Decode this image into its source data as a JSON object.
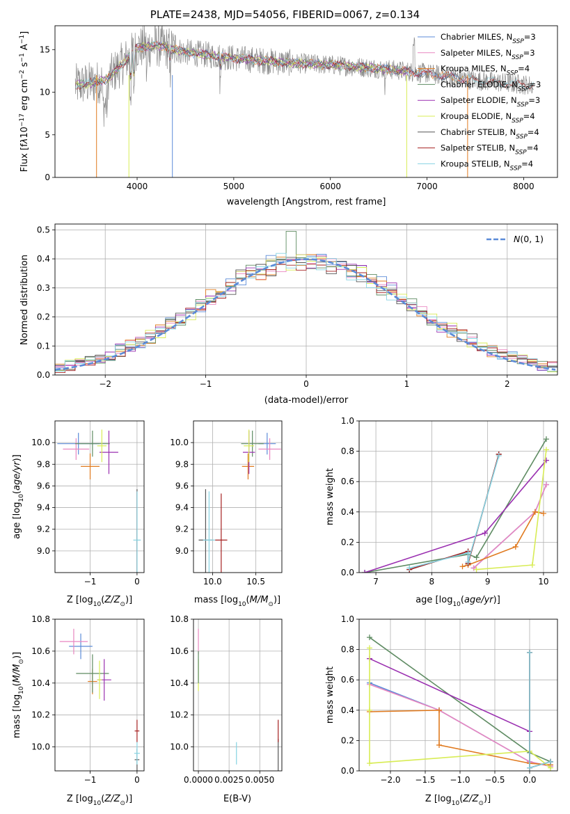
{
  "title": "PLATE=2438, MJD=54056, FIBERID=0067, z=0.134",
  "colors": {
    "chab_miles": "#5b8bd8",
    "salp_miles": "#e986c0",
    "krou_miles": "#e07a1f",
    "chab_elodie": "#5e8b62",
    "salp_elodie": "#9a2fb0",
    "krou_elodie": "#d8ec55",
    "chab_stelib": "#555555",
    "salp_stelib": "#a52020",
    "krou_stelib": "#86d3e2",
    "data_gray": "#8a8a8a",
    "normal_curve": "#5b8bd8"
  },
  "chart_data": [
    {
      "id": "spectrum",
      "type": "line",
      "xlabel": "wavelength [Angstrom, rest frame]",
      "ylabel": "Flux [f",
      "xlim": [
        3150,
        8350
      ],
      "ylim": [
        0,
        17.8
      ],
      "xticks": [
        4000,
        5000,
        6000,
        7000,
        8000
      ],
      "yticks": [
        0,
        5,
        10,
        15
      ],
      "legend_position": "upper right",
      "series": [
        {
          "key": "chab_miles",
          "label_main": "Chabrier MILES, N",
          "label_sub": "SSP",
          "label_end": "=3"
        },
        {
          "key": "salp_miles",
          "label_main": "Salpeter MILES, N",
          "label_sub": "SSP",
          "label_end": "=3"
        },
        {
          "key": "krou_miles",
          "label_main": "Kroupa MILES, N",
          "label_sub": "SSP",
          "label_end": "=4"
        },
        {
          "key": "chab_elodie",
          "label_main": "Chabrier ELODIE, N",
          "label_sub": "SSP",
          "label_end": "=3"
        },
        {
          "key": "salp_elodie",
          "label_main": "Salpeter ELODIE, N",
          "label_sub": "SSP",
          "label_end": "=3"
        },
        {
          "key": "krou_elodie",
          "label_main": "Kroupa ELODIE, N",
          "label_sub": "SSP",
          "label_end": "=4"
        },
        {
          "key": "chab_stelib",
          "label_main": "Chabrier STELIB, N",
          "label_sub": "SSP",
          "label_end": "=4"
        },
        {
          "key": "salp_stelib",
          "label_main": "Salpeter STELIB, N",
          "label_sub": "SSP",
          "label_end": "=4"
        },
        {
          "key": "krou_stelib",
          "label_main": "Kroupa STELIB, N",
          "label_sub": "SSP",
          "label_end": "=4"
        }
      ],
      "continuum": [
        [
          3360,
          10.8
        ],
        [
          3600,
          11.2
        ],
        [
          3700,
          11.6
        ],
        [
          3900,
          14.0
        ],
        [
          4000,
          15.2
        ],
        [
          4200,
          15.5
        ],
        [
          4500,
          14.7
        ],
        [
          5000,
          14.0
        ],
        [
          5500,
          13.5
        ],
        [
          6000,
          13.2
        ],
        [
          6500,
          12.8
        ],
        [
          7000,
          12.2
        ],
        [
          7500,
          11.4
        ],
        [
          8000,
          10.9
        ],
        [
          8100,
          10.8
        ]
      ],
      "model_dropouts": [
        {
          "key": "krou_miles",
          "x": 3580,
          "ymin": 0
        },
        {
          "key": "krou_elodie",
          "x": 3915,
          "ymin": 0
        },
        {
          "key": "chab_miles",
          "x": 4365,
          "ymin": 0
        },
        {
          "key": "krou_elodie",
          "x": 6790,
          "ymin": 0
        },
        {
          "key": "krou_miles",
          "x": 7420,
          "ymin": 0
        }
      ]
    },
    {
      "id": "residual-histogram",
      "type": "histogram",
      "xlabel": "(data-model)/error",
      "ylabel": "Normed distribution",
      "xlim": [
        -2.5,
        2.5
      ],
      "ylim": [
        0,
        0.52
      ],
      "xticks": [
        -2,
        -1,
        0,
        1,
        2
      ],
      "yticks": [
        0,
        0.1,
        0.2,
        0.3,
        0.4,
        0.5
      ],
      "grid": true,
      "legend_position": "upper right",
      "legend_label": "N(0,1)",
      "bin_width": 0.1,
      "peak_bin": {
        "series": "chab_elodie",
        "x": -0.2,
        "value": 0.495
      }
    },
    {
      "id": "age-vs-Z",
      "type": "scatter",
      "xlabel": "Z [log",
      "ylabel": "age  [log",
      "xlim": [
        -1.75,
        0.15
      ],
      "ylim": [
        8.8,
        10.2
      ],
      "xticks": [
        -1,
        0
      ],
      "yticks": [
        9.0,
        9.2,
        9.4,
        9.6,
        9.8,
        10.0
      ],
      "grid": true,
      "points": [
        {
          "key": "chab_miles",
          "x": -1.25,
          "y": 9.99,
          "xerr": 0.45,
          "yerr": 0.1
        },
        {
          "key": "salp_miles",
          "x": -1.3,
          "y": 9.94,
          "xerr": 0.28,
          "yerr": 0.1
        },
        {
          "key": "krou_miles",
          "x": -1.0,
          "y": 9.78,
          "xerr": 0.2,
          "yerr": 0.12
        },
        {
          "key": "chab_elodie",
          "x": -0.95,
          "y": 9.99,
          "xerr": 0.37,
          "yerr": 0.12
        },
        {
          "key": "salp_elodie",
          "x": -0.6,
          "y": 9.91,
          "xerr": 0.2,
          "yerr": 0.2
        },
        {
          "key": "krou_elodie",
          "x": -0.75,
          "y": 9.97,
          "xerr": 0.1,
          "yerr": 0.15
        },
        {
          "key": "chab_stelib",
          "x": 0.0,
          "y": 9.1,
          "xerr": 0.01,
          "yerr": 0.47
        },
        {
          "key": "salp_stelib",
          "x": 0.0,
          "y": 9.1,
          "xerr": 0.01,
          "yerr": 0.45
        },
        {
          "key": "krou_stelib",
          "x": 0.0,
          "y": 9.1,
          "xerr": 0.08,
          "yerr": 0.45
        }
      ]
    },
    {
      "id": "age-vs-mass",
      "type": "scatter",
      "xlabel": "mass [log",
      "ylabel": "",
      "xlim": [
        9.78,
        10.8
      ],
      "ylim": [
        8.8,
        10.2
      ],
      "xticks": [
        10.0,
        10.5
      ],
      "yticks": [
        9.0,
        9.2,
        9.4,
        9.6,
        9.8,
        10.0
      ],
      "grid": true,
      "points": [
        {
          "key": "chab_miles",
          "x": 10.63,
          "y": 9.99,
          "xerr": 0.1,
          "yerr": 0.1
        },
        {
          "key": "salp_miles",
          "x": 10.66,
          "y": 9.94,
          "xerr": 0.13,
          "yerr": 0.1
        },
        {
          "key": "krou_miles",
          "x": 10.41,
          "y": 9.78,
          "xerr": 0.07,
          "yerr": 0.12
        },
        {
          "key": "chab_elodie",
          "x": 10.46,
          "y": 9.99,
          "xerr": 0.13,
          "yerr": 0.12
        },
        {
          "key": "salp_elodie",
          "x": 10.42,
          "y": 9.91,
          "xerr": 0.07,
          "yerr": 0.2
        },
        {
          "key": "krou_elodie",
          "x": 10.42,
          "y": 9.97,
          "xerr": 0.06,
          "yerr": 0.15
        },
        {
          "key": "chab_stelib",
          "x": 9.92,
          "y": 9.1,
          "xerr": 0.08,
          "yerr": 0.47
        },
        {
          "key": "salp_stelib",
          "x": 10.1,
          "y": 9.1,
          "xerr": 0.07,
          "yerr": 0.43
        },
        {
          "key": "krou_stelib",
          "x": 9.96,
          "y": 9.1,
          "xerr": 0.07,
          "yerr": 0.45
        }
      ]
    },
    {
      "id": "massweight-vs-age",
      "type": "line",
      "xlabel": "age  [log",
      "ylabel": "mass weight",
      "xlim": [
        6.7,
        10.25
      ],
      "ylim": [
        0,
        1.0
      ],
      "xticks": [
        7,
        8,
        9,
        10
      ],
      "yticks": [
        0.0,
        0.2,
        0.4,
        0.6,
        0.8,
        1.0
      ],
      "grid": true,
      "series": [
        {
          "key": "chab_miles",
          "x": [
            8.75,
            9.85,
            10.05
          ],
          "y": [
            0.03,
            0.4,
            0.58
          ]
        },
        {
          "key": "salp_miles",
          "x": [
            8.75,
            9.85,
            10.05
          ],
          "y": [
            0.03,
            0.4,
            0.58
          ]
        },
        {
          "key": "krou_miles",
          "x": [
            8.55,
            8.65,
            9.5,
            9.85,
            10.0
          ],
          "y": [
            0.04,
            0.05,
            0.17,
            0.4,
            0.39
          ]
        },
        {
          "key": "chab_elodie",
          "x": [
            6.8,
            8.65,
            8.8,
            10.05
          ],
          "y": [
            0.0,
            0.12,
            0.1,
            0.88
          ]
        },
        {
          "key": "salp_elodie",
          "x": [
            6.8,
            8.95,
            10.05
          ],
          "y": [
            0.0,
            0.26,
            0.74
          ]
        },
        {
          "key": "krou_elodie",
          "x": [
            8.8,
            9.8,
            10.05
          ],
          "y": [
            0.02,
            0.05,
            0.81
          ]
        },
        {
          "key": "chab_stelib",
          "x": [
            7.6,
            8.65,
            8.65,
            9.2
          ],
          "y": [
            0.02,
            0.14,
            0.06,
            0.78
          ]
        },
        {
          "key": "salp_stelib",
          "x": [
            7.6,
            8.65,
            8.65,
            9.2
          ],
          "y": [
            0.02,
            0.14,
            0.06,
            0.78
          ]
        },
        {
          "key": "krou_stelib",
          "x": [
            7.6,
            8.65,
            8.65,
            9.2
          ],
          "y": [
            0.03,
            0.13,
            0.07,
            0.77
          ]
        }
      ]
    },
    {
      "id": "mass-vs-Z",
      "type": "scatter",
      "xlabel": "Z [log",
      "ylabel": "mass [log",
      "xlim": [
        -1.75,
        0.15
      ],
      "ylim": [
        9.85,
        10.8
      ],
      "xticks": [
        -1,
        0
      ],
      "yticks": [
        10.0,
        10.2,
        10.4,
        10.6,
        10.8
      ],
      "grid": true,
      "points": [
        {
          "key": "chab_miles",
          "x": -1.2,
          "y": 10.63,
          "xerr": 0.25,
          "yerr": 0.08
        },
        {
          "key": "salp_miles",
          "x": -1.35,
          "y": 10.66,
          "xerr": 0.3,
          "yerr": 0.08
        },
        {
          "key": "krou_miles",
          "x": -0.95,
          "y": 10.41,
          "xerr": 0.1,
          "yerr": 0.08
        },
        {
          "key": "chab_elodie",
          "x": -0.95,
          "y": 10.46,
          "xerr": 0.35,
          "yerr": 0.12
        },
        {
          "key": "salp_elodie",
          "x": -0.7,
          "y": 10.42,
          "xerr": 0.15,
          "yerr": 0.13
        },
        {
          "key": "krou_elodie",
          "x": -0.8,
          "y": 10.42,
          "xerr": 0.05,
          "yerr": 0.12
        },
        {
          "key": "chab_stelib",
          "x": 0.0,
          "y": 9.92,
          "xerr": 0.05,
          "yerr": 0.07
        },
        {
          "key": "salp_stelib",
          "x": 0.0,
          "y": 10.1,
          "xerr": 0.05,
          "yerr": 0.07
        },
        {
          "key": "krou_stelib",
          "x": 0.0,
          "y": 9.96,
          "xerr": 0.06,
          "yerr": 0.07
        }
      ]
    },
    {
      "id": "mass-vs-EBV",
      "type": "scatter",
      "xlabel": "E(B-V)",
      "ylabel": "",
      "xlim": [
        -0.0004,
        0.0068
      ],
      "ylim": [
        9.85,
        10.8
      ],
      "xticks": [
        0.0,
        0.0025,
        0.005
      ],
      "xticklabels": [
        "0.0000",
        "0.0025",
        "0.0050"
      ],
      "yticks": [
        10.0,
        10.2,
        10.4,
        10.6,
        10.8
      ],
      "grid": true,
      "points": [
        {
          "key": "krou_elodie",
          "x": 0.0,
          "y": 10.45,
          "xerr": 0,
          "yerr": 0.1
        },
        {
          "key": "salp_miles",
          "x": 0.0,
          "y": 10.66,
          "xerr": 0,
          "yerr": 0.08
        },
        {
          "key": "chab_elodie",
          "x": 0.0,
          "y": 10.5,
          "xerr": 0,
          "yerr": 0.1
        },
        {
          "key": "krou_stelib",
          "x": 0.0031,
          "y": 9.96,
          "xerr": 0,
          "yerr": 0.07
        },
        {
          "key": "chab_stelib",
          "x": 0.0065,
          "y": 9.95,
          "xerr": 0,
          "yerr": 0.1
        },
        {
          "key": "salp_stelib",
          "x": 0.0065,
          "y": 10.1,
          "xerr": 0,
          "yerr": 0.07
        }
      ]
    },
    {
      "id": "massweight-vs-Z",
      "type": "line",
      "xlabel": "Z [log",
      "ylabel": "mass weight",
      "xlim": [
        -2.45,
        0.4
      ],
      "ylim": [
        0,
        1.0
      ],
      "xticks": [
        -2.0,
        -1.5,
        -1.0,
        -0.5,
        0.0
      ],
      "yticks": [
        0.0,
        0.2,
        0.4,
        0.6,
        0.8,
        1.0
      ],
      "grid": true,
      "series": [
        {
          "key": "chab_miles",
          "x": [
            -2.3,
            -1.3,
            0.0,
            0.3
          ],
          "y": [
            0.58,
            0.4,
            0.06,
            0.03
          ]
        },
        {
          "key": "salp_miles",
          "x": [
            -2.3,
            -1.3,
            0.0,
            0.3
          ],
          "y": [
            0.57,
            0.4,
            0.06,
            0.03
          ]
        },
        {
          "key": "krou_miles",
          "x": [
            -2.3,
            -1.3,
            -1.3,
            0.0,
            0.3
          ],
          "y": [
            0.39,
            0.4,
            0.17,
            0.05,
            0.04
          ]
        },
        {
          "key": "chab_elodie",
          "x": [
            -2.3,
            0.0,
            0.3
          ],
          "y": [
            0.88,
            0.12,
            0.06
          ]
        },
        {
          "key": "salp_elodie",
          "x": [
            -2.3,
            0.0
          ],
          "y": [
            0.74,
            0.26
          ]
        },
        {
          "key": "krou_elodie",
          "x": [
            -2.3,
            -2.3,
            -2.3,
            0.0,
            0.3
          ],
          "y": [
            0.81,
            0.4,
            0.05,
            0.13,
            0.02
          ]
        },
        {
          "key": "chab_stelib",
          "x": [
            0.0,
            0.0,
            0.3
          ],
          "y": [
            0.78,
            0.02,
            0.06
          ]
        },
        {
          "key": "salp_stelib",
          "x": [
            0.0,
            0.0,
            0.3
          ],
          "y": [
            0.78,
            0.02,
            0.06
          ]
        },
        {
          "key": "krou_stelib",
          "x": [
            0.0,
            0.0,
            0.3
          ],
          "y": [
            0.78,
            0.02,
            0.06
          ]
        }
      ]
    }
  ]
}
